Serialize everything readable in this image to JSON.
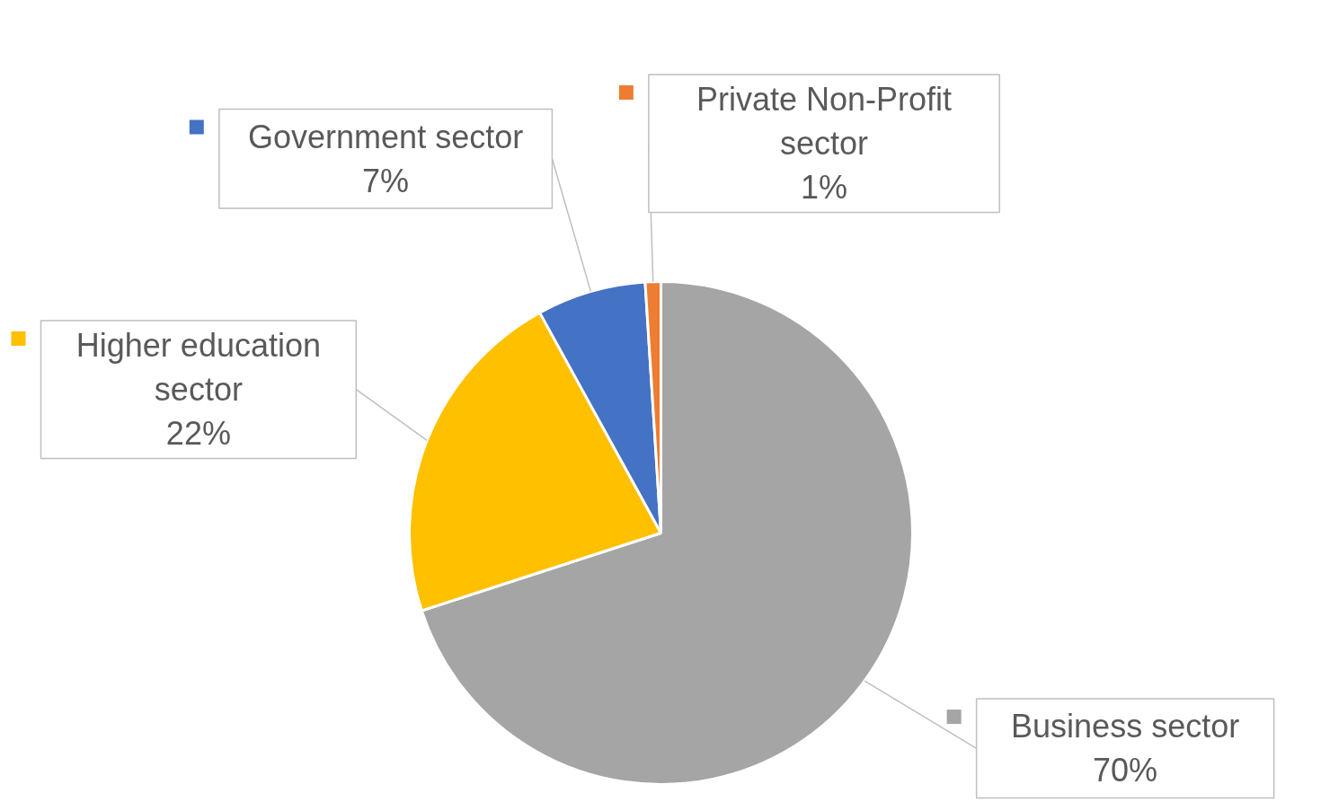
{
  "chart_data": {
    "type": "pie",
    "categories": [
      "Business sector",
      "Higher education sector",
      "Government sector",
      "Private Non-Profit sector"
    ],
    "values": [
      70,
      22,
      7,
      1
    ],
    "value_labels": [
      "70%",
      "22%",
      "7%",
      "1%"
    ],
    "colors": [
      "#a5a5a5",
      "#ffc000",
      "#4472c4",
      "#ed7d31"
    ],
    "legend": "top"
  }
}
